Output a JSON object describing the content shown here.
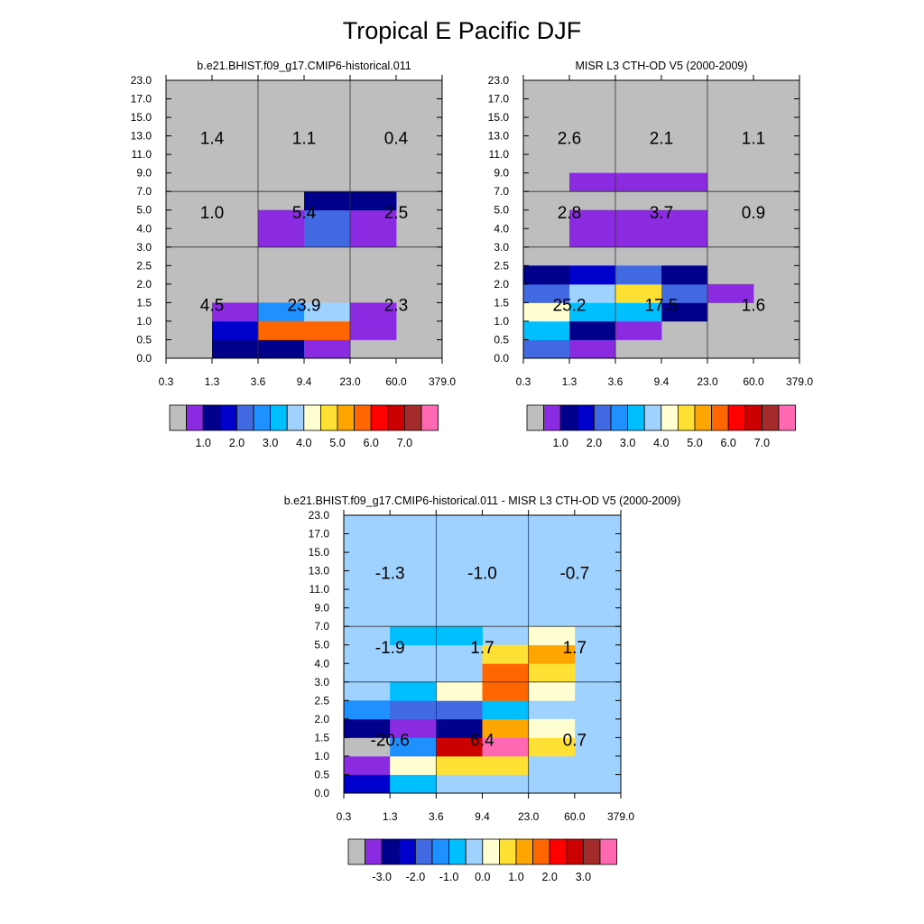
{
  "title": "Tropical E Pacific DJF",
  "colorbar_colors": [
    "#bebebe",
    "#8a2be2",
    "#00008b",
    "#0000cd",
    "#4169e1",
    "#1e90ff",
    "#00bfff",
    "#a0d2ff",
    "#ffffd1",
    "#ffe135",
    "#ffa500",
    "#ff6600",
    "#ff0000",
    "#cd0000",
    "#a52a2a",
    "#ff69b4"
  ],
  "background_colors": {
    "panel_a": "#bebebe",
    "panel_b": "#bebebe",
    "panel_c": "#a0d2ff"
  },
  "chart_data": [
    {
      "type": "heatmap",
      "panel": "a",
      "title": "b.e21.BHIST.f09_g17.CMIP6-historical.011",
      "x_tick_labels": [
        "0.3",
        "1.3",
        "3.6",
        "9.4",
        "23.0",
        "60.0",
        "379.0"
      ],
      "y_tick_labels": [
        "0.0",
        "0.5",
        "1.0",
        "1.5",
        "2.0",
        "2.5",
        "3.0",
        "4.0",
        "5.0",
        "7.0",
        "9.0",
        "11.0",
        "13.0",
        "15.0",
        "17.0",
        "23.0"
      ],
      "grid": true,
      "cells": [
        {
          "x": 1,
          "y": 0,
          "color_index": 2
        },
        {
          "x": 2,
          "y": 0,
          "color_index": 2
        },
        {
          "x": 3,
          "y": 0,
          "color_index": 1
        },
        {
          "x": 1,
          "y": 1,
          "color_index": 3
        },
        {
          "x": 2,
          "y": 1,
          "color_index": 11
        },
        {
          "x": 3,
          "y": 1,
          "color_index": 11
        },
        {
          "x": 4,
          "y": 1,
          "color_index": 1
        },
        {
          "x": 1,
          "y": 2,
          "color_index": 1
        },
        {
          "x": 2,
          "y": 2,
          "color_index": 5
        },
        {
          "x": 3,
          "y": 2,
          "color_index": 7
        },
        {
          "x": 4,
          "y": 2,
          "color_index": 1
        },
        {
          "x": 2,
          "y": 6,
          "color_index": 1
        },
        {
          "x": 3,
          "y": 6,
          "color_index": 4
        },
        {
          "x": 4,
          "y": 6,
          "color_index": 1
        },
        {
          "x": 2,
          "y": 7,
          "color_index": 1
        },
        {
          "x": 3,
          "y": 7,
          "color_index": 4
        },
        {
          "x": 4,
          "y": 7,
          "color_index": 1
        },
        {
          "x": 3,
          "y": 8,
          "color_index": 2
        },
        {
          "x": 4,
          "y": 8,
          "color_index": 2
        }
      ],
      "region_sums": [
        {
          "label": "1.4",
          "x": 1.0,
          "y": 11.9
        },
        {
          "label": "1.1",
          "x": 3.0,
          "y": 11.9
        },
        {
          "label": "0.4",
          "x": 5.0,
          "y": 11.9
        },
        {
          "label": "1.0",
          "x": 1.0,
          "y": 7.9
        },
        {
          "label": "5.4",
          "x": 3.0,
          "y": 7.9
        },
        {
          "label": "2.5",
          "x": 5.0,
          "y": 7.9
        },
        {
          "label": "4.5",
          "x": 1.0,
          "y": 2.9
        },
        {
          "label": "23.9",
          "x": 3.0,
          "y": 2.9
        },
        {
          "label": "2.3",
          "x": 5.0,
          "y": 2.9
        }
      ],
      "colorbar_labels": [
        "1.0",
        "2.0",
        "3.0",
        "4.0",
        "5.0",
        "6.0",
        "7.0"
      ]
    },
    {
      "type": "heatmap",
      "panel": "b",
      "title": "MISR L3 CTH-OD V5 (2000-2009)",
      "x_tick_labels": [
        "0.3",
        "1.3",
        "3.6",
        "9.4",
        "23.0",
        "60.0",
        "379.0"
      ],
      "y_tick_labels": [
        "0.0",
        "0.5",
        "1.0",
        "1.5",
        "2.0",
        "2.5",
        "3.0",
        "4.0",
        "5.0",
        "7.0",
        "9.0",
        "11.0",
        "13.0",
        "15.0",
        "17.0",
        "23.0"
      ],
      "grid": true,
      "cells": [
        {
          "x": 0,
          "y": 0,
          "color_index": 4
        },
        {
          "x": 1,
          "y": 0,
          "color_index": 1
        },
        {
          "x": 0,
          "y": 1,
          "color_index": 6
        },
        {
          "x": 1,
          "y": 1,
          "color_index": 2
        },
        {
          "x": 2,
          "y": 1,
          "color_index": 1
        },
        {
          "x": 0,
          "y": 2,
          "color_index": 8
        },
        {
          "x": 1,
          "y": 2,
          "color_index": 6
        },
        {
          "x": 2,
          "y": 2,
          "color_index": 6
        },
        {
          "x": 3,
          "y": 2,
          "color_index": 2
        },
        {
          "x": 0,
          "y": 3,
          "color_index": 4
        },
        {
          "x": 1,
          "y": 3,
          "color_index": 7
        },
        {
          "x": 2,
          "y": 3,
          "color_index": 9
        },
        {
          "x": 3,
          "y": 3,
          "color_index": 4
        },
        {
          "x": 4,
          "y": 3,
          "color_index": 1
        },
        {
          "x": 0,
          "y": 4,
          "color_index": 2
        },
        {
          "x": 1,
          "y": 4,
          "color_index": 3
        },
        {
          "x": 2,
          "y": 4,
          "color_index": 4
        },
        {
          "x": 3,
          "y": 4,
          "color_index": 2
        },
        {
          "x": 1,
          "y": 6,
          "color_index": 1
        },
        {
          "x": 2,
          "y": 6,
          "color_index": 1
        },
        {
          "x": 3,
          "y": 6,
          "color_index": 1
        },
        {
          "x": 1,
          "y": 7,
          "color_index": 1
        },
        {
          "x": 2,
          "y": 7,
          "color_index": 1
        },
        {
          "x": 3,
          "y": 7,
          "color_index": 1
        },
        {
          "x": 1,
          "y": 9,
          "color_index": 1
        },
        {
          "x": 2,
          "y": 9,
          "color_index": 1
        },
        {
          "x": 3,
          "y": 9,
          "color_index": 1
        }
      ],
      "region_sums": [
        {
          "label": "2.6",
          "x": 1.0,
          "y": 11.9
        },
        {
          "label": "2.1",
          "x": 3.0,
          "y": 11.9
        },
        {
          "label": "1.1",
          "x": 5.0,
          "y": 11.9
        },
        {
          "label": "2.8",
          "x": 1.0,
          "y": 7.9
        },
        {
          "label": "3.7",
          "x": 3.0,
          "y": 7.9
        },
        {
          "label": "0.9",
          "x": 5.0,
          "y": 7.9
        },
        {
          "label": "25.2",
          "x": 1.0,
          "y": 2.9
        },
        {
          "label": "17.5",
          "x": 3.0,
          "y": 2.9
        },
        {
          "label": "1.6",
          "x": 5.0,
          "y": 2.9
        }
      ],
      "colorbar_labels": [
        "1.0",
        "2.0",
        "3.0",
        "4.0",
        "5.0",
        "6.0",
        "7.0"
      ]
    },
    {
      "type": "heatmap",
      "panel": "c",
      "title": "b.e21.BHIST.f09_g17.CMIP6-historical.011 - MISR L3 CTH-OD V5 (2000-2009)",
      "x_tick_labels": [
        "0.3",
        "1.3",
        "3.6",
        "9.4",
        "23.0",
        "60.0",
        "379.0"
      ],
      "y_tick_labels": [
        "0.0",
        "0.5",
        "1.0",
        "1.5",
        "2.0",
        "2.5",
        "3.0",
        "4.0",
        "5.0",
        "7.0",
        "9.0",
        "11.0",
        "13.0",
        "15.0",
        "17.0",
        "23.0"
      ],
      "grid": true,
      "cells": [
        {
          "x": 0,
          "y": 0,
          "color_index": 3
        },
        {
          "x": 1,
          "y": 0,
          "color_index": 6
        },
        {
          "x": 0,
          "y": 1,
          "color_index": 1
        },
        {
          "x": 1,
          "y": 1,
          "color_index": 8
        },
        {
          "x": 2,
          "y": 1,
          "color_index": 9
        },
        {
          "x": 3,
          "y": 1,
          "color_index": 9
        },
        {
          "x": 0,
          "y": 2,
          "color_index": 0
        },
        {
          "x": 1,
          "y": 2,
          "color_index": 5
        },
        {
          "x": 2,
          "y": 2,
          "color_index": 13
        },
        {
          "x": 3,
          "y": 2,
          "color_index": 15
        },
        {
          "x": 4,
          "y": 2,
          "color_index": 9
        },
        {
          "x": 0,
          "y": 3,
          "color_index": 2
        },
        {
          "x": 1,
          "y": 3,
          "color_index": 1
        },
        {
          "x": 2,
          "y": 3,
          "color_index": 2
        },
        {
          "x": 3,
          "y": 3,
          "color_index": 10
        },
        {
          "x": 4,
          "y": 3,
          "color_index": 8
        },
        {
          "x": 0,
          "y": 4,
          "color_index": 5
        },
        {
          "x": 1,
          "y": 4,
          "color_index": 4
        },
        {
          "x": 2,
          "y": 4,
          "color_index": 4
        },
        {
          "x": 3,
          "y": 4,
          "color_index": 6
        },
        {
          "x": 1,
          "y": 5,
          "color_index": 6
        },
        {
          "x": 2,
          "y": 5,
          "color_index": 8
        },
        {
          "x": 3,
          "y": 5,
          "color_index": 11
        },
        {
          "x": 4,
          "y": 5,
          "color_index": 8
        },
        {
          "x": 3,
          "y": 6,
          "color_index": 11
        },
        {
          "x": 4,
          "y": 6,
          "color_index": 9
        },
        {
          "x": 3,
          "y": 7,
          "color_index": 9
        },
        {
          "x": 4,
          "y": 7,
          "color_index": 10
        },
        {
          "x": 1,
          "y": 8,
          "color_index": 6
        },
        {
          "x": 2,
          "y": 8,
          "color_index": 6
        },
        {
          "x": 4,
          "y": 8,
          "color_index": 8
        }
      ],
      "region_sums": [
        {
          "label": "-1.3",
          "x": 1.0,
          "y": 11.9
        },
        {
          "label": "-1.0",
          "x": 3.0,
          "y": 11.9
        },
        {
          "label": "-0.7",
          "x": 5.0,
          "y": 11.9
        },
        {
          "label": "-1.9",
          "x": 1.0,
          "y": 7.9
        },
        {
          "label": "1.7",
          "x": 3.0,
          "y": 7.9
        },
        {
          "label": "1.7",
          "x": 5.0,
          "y": 7.9
        },
        {
          "label": "-20.6",
          "x": 1.0,
          "y": 2.9
        },
        {
          "label": "6.4",
          "x": 3.0,
          "y": 2.9
        },
        {
          "label": "0.7",
          "x": 5.0,
          "y": 2.9
        }
      ],
      "colorbar_labels": [
        "-3.0",
        "-2.0",
        "-1.0",
        "0.0",
        "1.0",
        "2.0",
        "3.0"
      ]
    }
  ]
}
